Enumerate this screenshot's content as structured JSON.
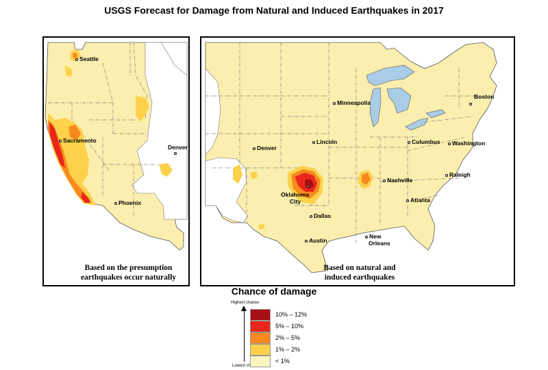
{
  "title": "USGS Forecast for Damage from Natural and Induced Earthquakes in 2017",
  "left_panel": {
    "caption_line1": "Based on the presumption",
    "caption_line2": "earthquakes occur naturally",
    "cities": [
      {
        "name": "Seattle"
      },
      {
        "name": "Sacramento"
      },
      {
        "name": "Denver"
      },
      {
        "name": "Phoenix"
      }
    ]
  },
  "right_panel": {
    "caption_line1": "Based on natural and",
    "caption_line2": "induced earthquakes",
    "cities": [
      {
        "name": "Minneapolis"
      },
      {
        "name": "Boston"
      },
      {
        "name": "Denver"
      },
      {
        "name": "Lincoln"
      },
      {
        "name": "Columbus"
      },
      {
        "name": "Washington"
      },
      {
        "name": "Oklahoma"
      },
      {
        "name": "City"
      },
      {
        "name": "Nashville"
      },
      {
        "name": "Raleigh"
      },
      {
        "name": "Atlanta"
      },
      {
        "name": "Dallas"
      },
      {
        "name": "Austin"
      },
      {
        "name": "New"
      },
      {
        "name": "Orleans"
      }
    ]
  },
  "legend": {
    "title": "Chance of damage",
    "highest_label": "Highest chance",
    "lowest_label": "Lowest chance",
    "items": [
      {
        "label": "10% – 12%",
        "color": "#a50f15"
      },
      {
        "label": "5% – 10%",
        "color": "#e8261c"
      },
      {
        "label": "2% – 5%",
        "color": "#f7891f"
      },
      {
        "label": "1% – 2%",
        "color": "#fdd14b"
      },
      {
        "label": "< 1%",
        "color": "#fdf5bd"
      }
    ]
  },
  "colors": {
    "land": "#fbeeae",
    "water": "#a9cde6",
    "border_line": "#7a7a7a",
    "no_data": "#ffffff"
  }
}
